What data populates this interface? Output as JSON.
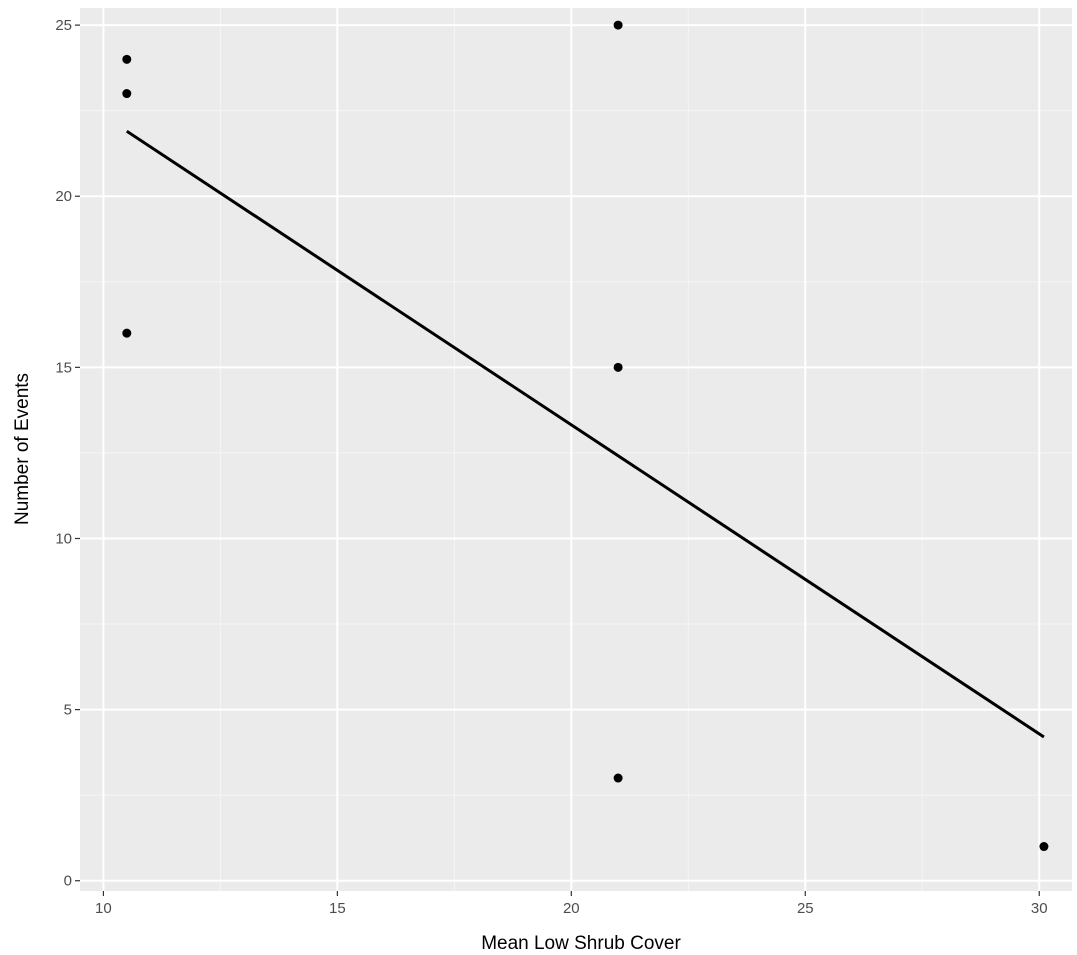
{
  "chart_data": {
    "type": "scatter",
    "title": "",
    "xlabel": "Mean Low Shrub Cover",
    "ylabel": "Number of Events",
    "xlim": [
      9.5,
      30.7
    ],
    "ylim": [
      -0.3,
      25.5
    ],
    "x_ticks": [
      10,
      15,
      20,
      25,
      30
    ],
    "y_ticks": [
      0,
      5,
      10,
      15,
      20,
      25
    ],
    "x_tick_labels": [
      "10",
      "15",
      "20",
      "25",
      "30"
    ],
    "y_tick_labels": [
      "0",
      "5",
      "10",
      "15",
      "20",
      "25"
    ],
    "grid": true,
    "legend": "none",
    "points": [
      {
        "x": 10.5,
        "y": 24
      },
      {
        "x": 10.5,
        "y": 23
      },
      {
        "x": 10.5,
        "y": 16
      },
      {
        "x": 21.0,
        "y": 25
      },
      {
        "x": 21.0,
        "y": 15
      },
      {
        "x": 21.0,
        "y": 3
      },
      {
        "x": 30.1,
        "y": 1
      }
    ],
    "trend_line": {
      "type": "linear fit",
      "start": {
        "x": 10.5,
        "y": 21.9
      },
      "end": {
        "x": 30.1,
        "y": 4.2
      }
    },
    "colors": {
      "panel_background": "#ebebeb",
      "grid_major": "#ffffff",
      "grid_minor": "#f5f5f5",
      "points": "#000000",
      "line": "#000000",
      "tick_text": "#4d4d4d"
    }
  }
}
